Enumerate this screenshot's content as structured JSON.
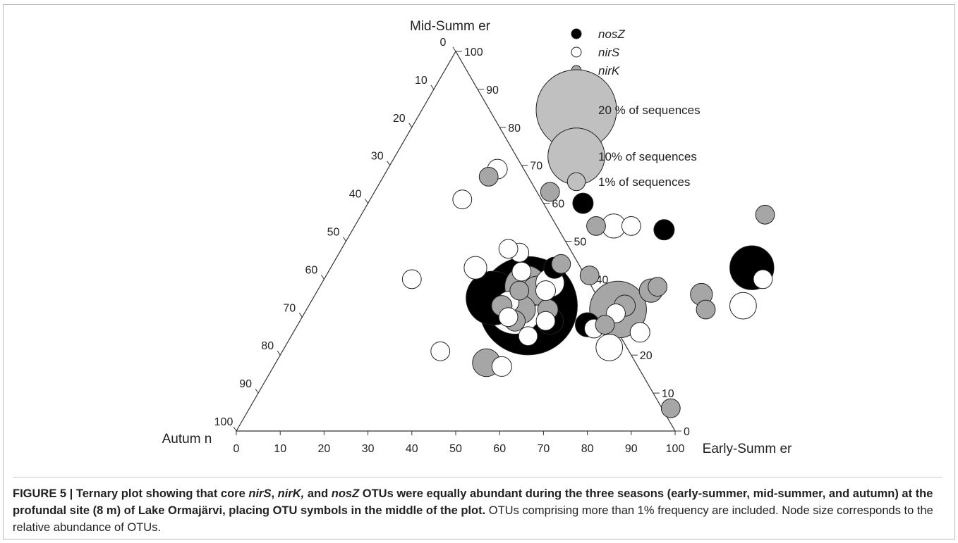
{
  "chart_data": {
    "type": "scatter",
    "variant": "ternary bubble plot",
    "axes": {
      "top": "Mid-Summ er",
      "left": "Autum n",
      "right": "Early-Summ er"
    },
    "ticks": [
      "0",
      "10",
      "20",
      "30",
      "40",
      "50",
      "60",
      "70",
      "80",
      "90",
      "100"
    ],
    "range": [
      0,
      100
    ],
    "legend": {
      "placement": "top-right",
      "series": [
        {
          "label": "nosZ",
          "fill": "#000000"
        },
        {
          "label": "nirS",
          "fill": "#ffffff"
        },
        {
          "label": "nirK",
          "fill": "#a6a6a6"
        }
      ],
      "sizes": [
        {
          "label": "20 % of sequences",
          "pct": 20
        },
        {
          "label": "10% of sequences",
          "pct": 10
        },
        {
          "label": "1% of sequences",
          "pct": 1
        }
      ]
    },
    "points": [
      {
        "s": "nosZ",
        "es": 50,
        "ms": 33,
        "pct": 30
      },
      {
        "s": "nosZ",
        "es": 41,
        "ms": 35,
        "pct": 9
      },
      {
        "s": "nosZ",
        "es": 57,
        "ms": 29,
        "pct": 2.2
      },
      {
        "s": "nosZ",
        "es": 66,
        "ms": 28,
        "pct": 1.8
      },
      {
        "s": "nosZ",
        "es": 51,
        "ms": 43,
        "pct": 1.4
      },
      {
        "s": "nosZ",
        "es": 71,
        "ms": 53,
        "pct": 1.3
      },
      {
        "s": "nosZ",
        "es": 96,
        "ms": 43,
        "pct": 6
      },
      {
        "s": "nosZ",
        "es": 49,
        "ms": 60,
        "pct": 1.3
      },
      {
        "s": "nirS",
        "es": 47,
        "ms": 33,
        "pct": 10
      },
      {
        "s": "nirS",
        "es": 52,
        "ms": 39,
        "pct": 2.5
      },
      {
        "s": "nirS",
        "es": 45,
        "ms": 34,
        "pct": 1.4
      },
      {
        "s": "nirS",
        "es": 52,
        "ms": 37,
        "pct": 1.2
      },
      {
        "s": "nirS",
        "es": 59,
        "ms": 54,
        "pct": 1.8
      },
      {
        "s": "nirS",
        "es": 63,
        "ms": 54,
        "pct": 1.1
      },
      {
        "s": "nirS",
        "es": 41,
        "ms": 47,
        "pct": 1.1
      },
      {
        "s": "nirS",
        "es": 38,
        "ms": 48,
        "pct": 1.1
      },
      {
        "s": "nirS",
        "es": 44,
        "ms": 42,
        "pct": 1.1
      },
      {
        "s": "nirS",
        "es": 56,
        "ms": 29,
        "pct": 1.1
      },
      {
        "s": "nirS",
        "es": 54,
        "ms": 25,
        "pct": 1.1
      },
      {
        "s": "nirS",
        "es": 68,
        "ms": 27,
        "pct": 1.1
      },
      {
        "s": "nirS",
        "es": 74,
        "ms": 22,
        "pct": 2.2
      },
      {
        "s": "nirS",
        "es": 79,
        "ms": 26,
        "pct": 1.2
      },
      {
        "s": "nirS",
        "es": 99,
        "ms": 33,
        "pct": 2.2
      },
      {
        "s": "nirS",
        "es": 52,
        "ms": 17,
        "pct": 1.2
      },
      {
        "s": "nirS",
        "es": 36,
        "ms": 21,
        "pct": 1.1
      },
      {
        "s": "nirS",
        "es": 33,
        "ms": 43,
        "pct": 1.6
      },
      {
        "s": "nirS",
        "es": 25,
        "ms": 69,
        "pct": 1.2
      },
      {
        "s": "nirS",
        "es": 21,
        "ms": 61,
        "pct": 1.1
      },
      {
        "s": "nirS",
        "es": 20,
        "ms": 40,
        "pct": 1.1
      },
      {
        "s": "nirS",
        "es": 100,
        "ms": 40,
        "pct": 1.1
      },
      {
        "s": "nirS",
        "es": 71,
        "ms": 31,
        "pct": 1.1
      },
      {
        "s": "nirS",
        "es": 47,
        "ms": 30,
        "pct": 1.1
      },
      {
        "s": "nirK",
        "es": 47,
        "ms": 38,
        "pct": 5.5
      },
      {
        "s": "nirK",
        "es": 50,
        "ms": 37,
        "pct": 2.6
      },
      {
        "s": "nirK",
        "es": 49,
        "ms": 32,
        "pct": 2.4
      },
      {
        "s": "nirK",
        "es": 71,
        "ms": 32,
        "pct": 10
      },
      {
        "s": "nirK",
        "es": 55,
        "ms": 32,
        "pct": 1.3
      },
      {
        "s": "nirK",
        "es": 44,
        "ms": 33,
        "pct": 1.3
      },
      {
        "s": "nirK",
        "es": 49,
        "ms": 29,
        "pct": 1.3
      },
      {
        "s": "nirK",
        "es": 72,
        "ms": 33,
        "pct": 1.4
      },
      {
        "s": "nirK",
        "es": 76,
        "ms": 37,
        "pct": 1.7
      },
      {
        "s": "nirK",
        "es": 88,
        "ms": 36,
        "pct": 1.5
      },
      {
        "s": "nirK",
        "es": 77,
        "ms": 38,
        "pct": 1.1
      },
      {
        "s": "nirK",
        "es": 91,
        "ms": 32,
        "pct": 1.1
      },
      {
        "s": "nirK",
        "es": 70,
        "ms": 28,
        "pct": 1.1
      },
      {
        "s": "nirK",
        "es": 46,
        "ms": 37,
        "pct": 1.1
      },
      {
        "s": "nirK",
        "es": 60,
        "ms": 41,
        "pct": 1.1
      },
      {
        "s": "nirK",
        "es": 48,
        "ms": 18,
        "pct": 2.4
      },
      {
        "s": "nirK",
        "es": 92,
        "ms": 57,
        "pct": 1.1
      },
      {
        "s": "nirK",
        "es": 40,
        "ms": 63,
        "pct": 1.1
      },
      {
        "s": "nirK",
        "es": 24,
        "ms": 67,
        "pct": 1.1
      },
      {
        "s": "nirK",
        "es": 96,
        "ms": 6,
        "pct": 1.1
      },
      {
        "s": "nirK",
        "es": 55,
        "ms": 54,
        "pct": 1.1
      },
      {
        "s": "nirK",
        "es": 52,
        "ms": 44,
        "pct": 1.1
      }
    ]
  },
  "caption": {
    "label": "FIGURE 5 | ",
    "bold_1": "Ternary plot showing that core ",
    "bold_i1": "nirS",
    "bold_2": ", ",
    "bold_i2": "nirK,",
    "bold_3": " and ",
    "bold_i3": "nosZ",
    "bold_4": " OTUs were equally abundant during the three seasons (early-summer, mid-summer, and autumn) at the profundal site (8 m) of Lake Ormajärvi, placing OTU symbols in the middle of the plot.",
    "normal": " OTUs comprising more than 1% frequency are included. Node size corresponds to the relative abundance of OTUs."
  }
}
